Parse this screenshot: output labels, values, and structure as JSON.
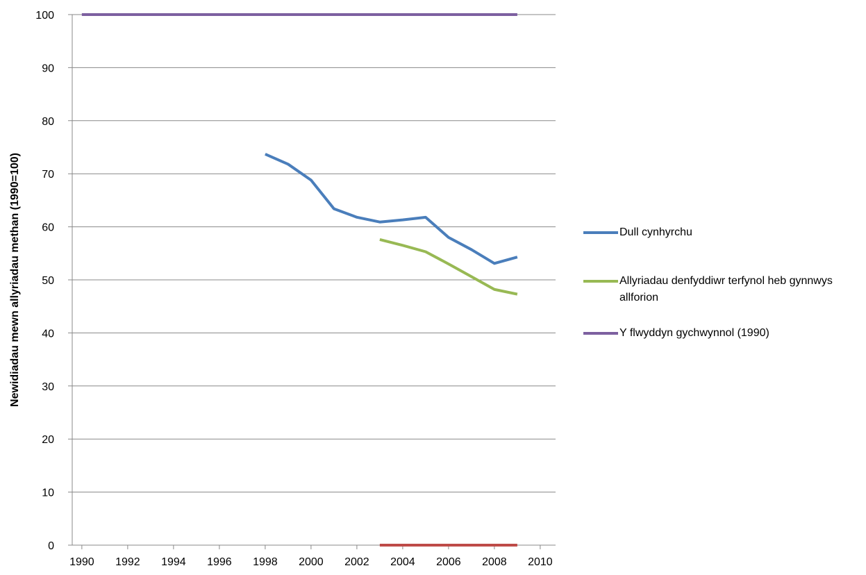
{
  "chart_data": {
    "type": "line",
    "ylabel": "Newidiadau mewn allyriadau methan (1990=100)",
    "x": [
      1990,
      1991,
      1992,
      1993,
      1994,
      1995,
      1996,
      1997,
      1998,
      1999,
      2000,
      2001,
      2002,
      2003,
      2004,
      2005,
      2006,
      2007,
      2008,
      2009
    ],
    "series": [
      {
        "name": "Dull cynhyrchu",
        "color": "#4a7ebb",
        "values": [
          null,
          null,
          null,
          null,
          null,
          null,
          null,
          null,
          73.7,
          71.8,
          68.8,
          63.4,
          61.8,
          60.9,
          61.3,
          61.8,
          58.0,
          55.7,
          53.1,
          54.3
        ]
      },
      {
        "name": "Allyriadau denfyddiwr terfynol heb gynnwys allforion",
        "color": "#98b954",
        "values": [
          null,
          null,
          null,
          null,
          null,
          null,
          null,
          null,
          null,
          null,
          null,
          null,
          null,
          57.6,
          56.5,
          55.3,
          53.0,
          50.6,
          48.2,
          47.3
        ]
      },
      {
        "name": "Y flwyddyn gychwynnol (1990)",
        "color": "#7d60a0",
        "values": [
          100,
          100,
          100,
          100,
          100,
          100,
          100,
          100,
          100,
          100,
          100,
          100,
          100,
          100,
          100,
          100,
          100,
          100,
          100,
          100
        ]
      },
      {
        "color": "#be4b48",
        "values": [
          null,
          null,
          null,
          null,
          null,
          null,
          null,
          null,
          null,
          null,
          null,
          null,
          null,
          0,
          0,
          0,
          0,
          0,
          0,
          0
        ]
      }
    ],
    "xlim": [
      1989.58,
      2010.67
    ],
    "xticks": [
      1990,
      1992,
      1994,
      1996,
      1998,
      2000,
      2002,
      2004,
      2006,
      2008,
      2010
    ],
    "ylim": [
      0,
      100
    ],
    "yticks": [
      0,
      10,
      20,
      30,
      40,
      50,
      60,
      70,
      80,
      90,
      100
    ],
    "grid": true,
    "legend": "right"
  }
}
